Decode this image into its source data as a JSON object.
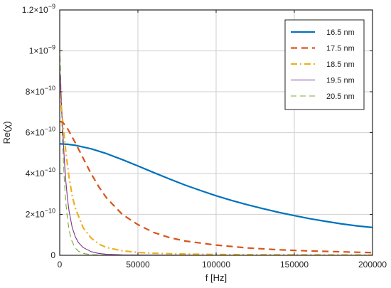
{
  "chart_data": {
    "type": "line",
    "title": "",
    "xlabel": "f [Hz]",
    "ylabel": "Re(χ)",
    "xlim": [
      0,
      200000
    ],
    "ylim": [
      0,
      1.2e-09
    ],
    "x_ticks": [
      0,
      50000,
      100000,
      150000,
      200000
    ],
    "x_tick_labels": [
      "0",
      "50000",
      "100000",
      "150000",
      "200000"
    ],
    "y_ticks": [
      0,
      2e-10,
      4e-10,
      6e-10,
      8e-10,
      1e-09,
      1.2e-09
    ],
    "y_tick_labels": [
      {
        "mantissa": "0",
        "exponent": ""
      },
      {
        "mantissa": "2×10",
        "exponent": "−10"
      },
      {
        "mantissa": "4×10",
        "exponent": "−10"
      },
      {
        "mantissa": "6×10",
        "exponent": "−10"
      },
      {
        "mantissa": "8×10",
        "exponent": "−10"
      },
      {
        "mantissa": "1×10",
        "exponent": "−9"
      },
      {
        "mantissa": "1.2×10",
        "exponent": "−9"
      }
    ],
    "grid": true,
    "legend_position": "top-right",
    "series": [
      {
        "name": "16.5 nm",
        "color": "#0072BD",
        "style": "solid-thick",
        "x": [
          0,
          5000,
          10000,
          20000,
          30000,
          40000,
          50000,
          60000,
          70000,
          80000,
          90000,
          100000,
          110000,
          120000,
          130000,
          140000,
          150000,
          160000,
          170000,
          180000,
          190000,
          200000
        ],
        "y": [
          5.45e-10,
          5.43e-10,
          5.38e-10,
          5.21e-10,
          4.97e-10,
          4.68e-10,
          4.37e-10,
          4.05e-10,
          3.74e-10,
          3.44e-10,
          3.17e-10,
          2.91e-10,
          2.68e-10,
          2.47e-10,
          2.28e-10,
          2.1e-10,
          1.94e-10,
          1.79e-10,
          1.66e-10,
          1.54e-10,
          1.44e-10,
          1.36e-10
        ]
      },
      {
        "name": "17.5 nm",
        "color": "#D95319",
        "style": "dashed-thick",
        "x": [
          0,
          2000,
          5000,
          10000,
          15000,
          20000,
          25000,
          30000,
          40000,
          50000,
          60000,
          70000,
          80000,
          100000,
          120000,
          140000,
          160000,
          180000,
          200000
        ],
        "y": [
          6.55e-10,
          6.5e-10,
          6.2e-10,
          5.5e-10,
          4.75e-10,
          4e-10,
          3.35e-10,
          2.8e-10,
          2e-10,
          1.5e-10,
          1.12e-10,
          8.7e-11,
          7e-11,
          5e-11,
          3.6e-11,
          2.7e-11,
          2.1e-11,
          1.7e-11,
          1.3e-11
        ]
      },
      {
        "name": "18.5 nm",
        "color": "#EDB120",
        "style": "dashdot-thick",
        "x": [
          0,
          1000,
          2000,
          4000,
          6000,
          8000,
          10000,
          15000,
          20000,
          25000,
          30000,
          40000,
          50000,
          60000,
          80000,
          100000,
          120000,
          150000,
          200000
        ],
        "y": [
          8e-10,
          7.3e-10,
          6.5e-10,
          5e-10,
          3.8e-10,
          2.9e-10,
          2.3e-10,
          1.35e-10,
          8.5e-11,
          5.5e-11,
          3.8e-11,
          2.2e-11,
          1.4e-11,
          1e-11,
          6e-12,
          4e-12,
          3e-12,
          2e-12,
          1e-12
        ]
      },
      {
        "name": "19.5 nm",
        "color": "#7E2F8E",
        "style": "solid-thin",
        "x": [
          0,
          500,
          1000,
          2000,
          3000,
          4000,
          5000,
          6000,
          8000,
          10000,
          12000,
          15000,
          20000,
          25000,
          30000,
          40000,
          60000,
          100000,
          200000
        ],
        "y": [
          9.1e-10,
          8.5e-10,
          7.6e-10,
          6e-10,
          4.6e-10,
          3.55e-10,
          2.75e-10,
          2.15e-10,
          1.35e-10,
          9e-11,
          6.2e-11,
          3.8e-11,
          1.8e-11,
          9e-12,
          5e-12,
          2e-12,
          1e-12,
          0.0,
          0.0
        ]
      },
      {
        "name": "20.5 nm",
        "color": "#77AC30",
        "style": "dashed-thin",
        "x": [
          0,
          500,
          1000,
          1500,
          2000,
          3000,
          4000,
          5000,
          6000,
          7000,
          8000,
          10000,
          12000,
          15000,
          20000,
          30000,
          50000,
          100000,
          200000
        ],
        "y": [
          1.02e-09,
          9e-10,
          7.6e-10,
          6.3e-10,
          5.2e-10,
          3.6e-10,
          2.5e-10,
          1.75e-10,
          1.25e-10,
          9e-11,
          6.5e-11,
          3.5e-11,
          2e-11,
          9e-12,
          3e-12,
          5e-13,
          0.0,
          0.0,
          0.0
        ]
      }
    ]
  }
}
